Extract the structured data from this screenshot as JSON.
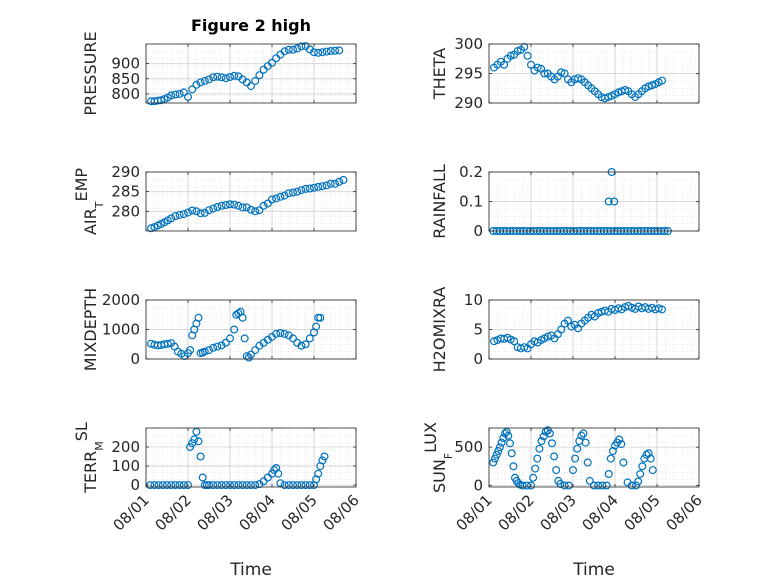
{
  "chart_data": {
    "type": "scatter",
    "title": "Figure 2 high",
    "xlabel": "Time",
    "xticks": [
      "08/01",
      "08/02",
      "08/03",
      "08/04",
      "08/05",
      "08/06"
    ],
    "xlim": [
      0,
      5
    ],
    "marker_color": "#0072BD",
    "grid": true,
    "panels": [
      {
        "ylabel": "PRESSURE",
        "ylabel_subscript": "",
        "ylim": [
          770,
          965
        ],
        "yticks": [
          800,
          850,
          900
        ],
        "ytick_labels": [
          "800",
          "850",
          "900"
        ],
        "title": "Figure 2 high",
        "x": [
          0.12,
          0.2,
          0.28,
          0.36,
          0.44,
          0.52,
          0.6,
          0.7,
          0.8,
          0.9,
          1.0,
          1.1,
          1.2,
          1.3,
          1.4,
          1.5,
          1.6,
          1.7,
          1.8,
          1.9,
          2.0,
          2.1,
          2.2,
          2.3,
          2.4,
          2.5,
          2.6,
          2.7,
          2.8,
          2.9,
          3.0,
          3.1,
          3.2,
          3.3,
          3.4,
          3.5,
          3.6,
          3.7,
          3.8,
          3.9,
          4.0,
          4.1,
          4.2,
          4.3,
          4.4,
          4.5,
          4.6
        ],
        "y": [
          776,
          776,
          778,
          779,
          783,
          788,
          795,
          798,
          800,
          805,
          790,
          815,
          830,
          838,
          843,
          848,
          855,
          857,
          855,
          852,
          856,
          860,
          858,
          848,
          838,
          826,
          843,
          862,
          880,
          892,
          903,
          918,
          930,
          941,
          946,
          946,
          950,
          957,
          958,
          947,
          938,
          936,
          938,
          940,
          942,
          943,
          944
        ]
      },
      {
        "ylabel": "AIR",
        "ylabel_subscript": "T",
        "ylabel_suffix": "EMP",
        "ylim": [
          275,
          290
        ],
        "yticks": [
          280,
          285,
          290
        ],
        "ytick_labels": [
          "280",
          "285",
          "290"
        ],
        "x": [
          0.12,
          0.2,
          0.28,
          0.36,
          0.44,
          0.52,
          0.6,
          0.7,
          0.8,
          0.9,
          1.0,
          1.1,
          1.2,
          1.3,
          1.4,
          1.5,
          1.6,
          1.7,
          1.8,
          1.9,
          2.0,
          2.1,
          2.2,
          2.3,
          2.4,
          2.5,
          2.6,
          2.7,
          2.8,
          2.9,
          3.0,
          3.1,
          3.2,
          3.3,
          3.4,
          3.5,
          3.6,
          3.7,
          3.8,
          3.9,
          4.0,
          4.1,
          4.2,
          4.3,
          4.4,
          4.5,
          4.6,
          4.7
        ],
        "y": [
          275.7,
          276.0,
          276.4,
          276.8,
          277.2,
          277.7,
          278.2,
          278.8,
          279.1,
          279.3,
          279.7,
          280.2,
          280.0,
          279.5,
          279.6,
          280.3,
          280.7,
          281.1,
          281.4,
          281.6,
          281.8,
          281.7,
          281.4,
          281.0,
          281.0,
          280.4,
          280.0,
          280.3,
          281.4,
          282.0,
          283.0,
          283.3,
          283.7,
          284.0,
          284.6,
          284.8,
          285.0,
          285.4,
          285.7,
          285.8,
          286.0,
          286.2,
          286.4,
          286.6,
          287.0,
          287.0,
          287.5,
          288.0
        ]
      },
      {
        "ylabel": "MIXDEPTH",
        "ylabel_subscript": "",
        "ylim": [
          0,
          2000
        ],
        "yticks": [
          0,
          1000,
          2000
        ],
        "ytick_labels": [
          "0",
          "1000",
          "2000"
        ],
        "x": [
          0.12,
          0.2,
          0.28,
          0.36,
          0.44,
          0.52,
          0.6,
          0.68,
          0.76,
          0.84,
          0.92,
          1.0,
          1.05,
          1.1,
          1.15,
          1.2,
          1.25,
          1.3,
          1.35,
          1.4,
          1.5,
          1.6,
          1.7,
          1.8,
          1.9,
          2.0,
          2.1,
          2.15,
          2.2,
          2.25,
          2.3,
          2.35,
          2.4,
          2.45,
          2.5,
          2.6,
          2.7,
          2.8,
          2.9,
          3.0,
          3.1,
          3.2,
          3.3,
          3.4,
          3.5,
          3.6,
          3.7,
          3.8,
          3.9,
          4.0,
          4.05,
          4.1,
          4.15
        ],
        "y": [
          520,
          480,
          460,
          470,
          500,
          520,
          540,
          420,
          250,
          180,
          100,
          200,
          300,
          800,
          1000,
          1200,
          1400,
          200,
          220,
          250,
          300,
          380,
          420,
          460,
          550,
          700,
          1000,
          1500,
          1550,
          1600,
          1400,
          700,
          100,
          50,
          150,
          300,
          450,
          550,
          650,
          750,
          850,
          880,
          850,
          800,
          700,
          550,
          450,
          500,
          700,
          900,
          1100,
          1400,
          1400
        ]
      },
      {
        "ylabel": "TERR",
        "ylabel_subscript": "M",
        "ylabel_suffix": "SL",
        "ylim": [
          -10,
          300
        ],
        "yticks": [
          0,
          100,
          200
        ],
        "ytick_labels": [
          "0",
          "100",
          "200"
        ],
        "x": [
          0.1,
          0.2,
          0.3,
          0.4,
          0.5,
          0.6,
          0.7,
          0.8,
          0.9,
          1.0,
          1.05,
          1.1,
          1.15,
          1.2,
          1.25,
          1.3,
          1.35,
          1.4,
          1.45,
          1.5,
          1.6,
          1.7,
          1.8,
          1.9,
          2.0,
          2.1,
          2.2,
          2.3,
          2.4,
          2.5,
          2.6,
          2.7,
          2.8,
          2.9,
          3.0,
          3.05,
          3.1,
          3.15,
          3.2,
          3.3,
          3.4,
          3.5,
          3.6,
          3.7,
          3.8,
          3.9,
          4.0,
          4.05,
          4.1,
          4.15,
          4.2,
          4.25
        ],
        "y": [
          0,
          0,
          0,
          0,
          0,
          0,
          0,
          0,
          0,
          0,
          200,
          220,
          240,
          280,
          230,
          150,
          40,
          0,
          0,
          0,
          0,
          0,
          0,
          0,
          0,
          0,
          0,
          0,
          0,
          0,
          0,
          5,
          20,
          40,
          60,
          80,
          90,
          60,
          10,
          0,
          0,
          0,
          0,
          0,
          0,
          0,
          0,
          30,
          60,
          100,
          130,
          150
        ]
      },
      {
        "ylabel": "THETA",
        "ylabel_subscript": "",
        "ylim": [
          290,
          300
        ],
        "yticks": [
          290,
          295,
          300
        ],
        "ytick_labels": [
          "290",
          "295",
          "300"
        ],
        "x": [
          0.12,
          0.2,
          0.28,
          0.36,
          0.44,
          0.52,
          0.6,
          0.68,
          0.76,
          0.84,
          0.92,
          1.0,
          1.08,
          1.16,
          1.24,
          1.32,
          1.4,
          1.48,
          1.56,
          1.64,
          1.72,
          1.8,
          1.88,
          1.96,
          2.04,
          2.12,
          2.2,
          2.28,
          2.36,
          2.44,
          2.52,
          2.6,
          2.68,
          2.76,
          2.84,
          2.92,
          3.0,
          3.08,
          3.16,
          3.24,
          3.32,
          3.4,
          3.48,
          3.56,
          3.64,
          3.72,
          3.8,
          3.88,
          3.96,
          4.04,
          4.12
        ],
        "y": [
          296.0,
          296.5,
          297.0,
          296.5,
          297.5,
          298.0,
          298.2,
          298.8,
          299.0,
          299.5,
          298.0,
          296.5,
          295.5,
          296.0,
          295.8,
          295.0,
          295.0,
          294.5,
          294.0,
          294.5,
          295.2,
          295.0,
          294.0,
          293.5,
          294.0,
          294.2,
          294.0,
          293.5,
          293.0,
          292.5,
          292.0,
          291.5,
          291.0,
          290.8,
          291.0,
          291.2,
          291.5,
          291.8,
          292.0,
          292.2,
          292.0,
          291.5,
          291.0,
          291.5,
          292.0,
          292.5,
          292.8,
          293.0,
          293.2,
          293.5,
          293.8
        ]
      },
      {
        "ylabel": "RAINFALL",
        "ylabel_subscript": "",
        "ylim": [
          0,
          0.2
        ],
        "yticks": [
          0,
          0.1,
          0.2
        ],
        "ytick_labels": [
          "0",
          "0.1",
          "0.2"
        ],
        "x": [
          0.1,
          0.18,
          0.26,
          0.34,
          0.42,
          0.5,
          0.58,
          0.66,
          0.74,
          0.82,
          0.9,
          0.98,
          1.06,
          1.14,
          1.22,
          1.3,
          1.38,
          1.46,
          1.54,
          1.62,
          1.7,
          1.78,
          1.86,
          1.94,
          2.02,
          2.1,
          2.18,
          2.26,
          2.34,
          2.42,
          2.5,
          2.58,
          2.66,
          2.74,
          2.82,
          2.9,
          2.98,
          3.06,
          3.14,
          3.22,
          3.3,
          3.38,
          3.46,
          3.54,
          3.62,
          3.7,
          3.78,
          3.86,
          3.94,
          4.02,
          4.1,
          4.18,
          4.26,
          2.85,
          2.92,
          2.98
        ],
        "y": [
          0,
          0,
          0,
          0,
          0,
          0,
          0,
          0,
          0,
          0,
          0,
          0,
          0,
          0,
          0,
          0,
          0,
          0,
          0,
          0,
          0,
          0,
          0,
          0,
          0,
          0,
          0,
          0,
          0,
          0,
          0,
          0,
          0,
          0,
          0,
          0,
          0,
          0,
          0,
          0,
          0,
          0,
          0,
          0,
          0,
          0,
          0,
          0,
          0,
          0,
          0,
          0,
          0,
          0.1,
          0.2,
          0.1
        ]
      },
      {
        "ylabel": "H2OMIXRA",
        "ylabel_subscript": "",
        "ylim": [
          0,
          10
        ],
        "yticks": [
          0,
          5,
          10
        ],
        "ytick_labels": [
          "0",
          "5",
          "10"
        ],
        "x": [
          0.12,
          0.2,
          0.28,
          0.36,
          0.44,
          0.52,
          0.6,
          0.68,
          0.76,
          0.84,
          0.92,
          1.0,
          1.08,
          1.16,
          1.24,
          1.32,
          1.4,
          1.48,
          1.56,
          1.64,
          1.72,
          1.8,
          1.88,
          1.96,
          2.04,
          2.12,
          2.2,
          2.28,
          2.36,
          2.44,
          2.52,
          2.6,
          2.68,
          2.76,
          2.84,
          2.92,
          3.0,
          3.08,
          3.16,
          3.24,
          3.32,
          3.4,
          3.48,
          3.56,
          3.64,
          3.72,
          3.8,
          3.88,
          3.96,
          4.04,
          4.12
        ],
        "y": [
          3.0,
          3.2,
          3.5,
          3.4,
          3.6,
          3.3,
          3.0,
          2.0,
          1.8,
          2.0,
          1.8,
          2.5,
          3.0,
          2.8,
          3.2,
          3.5,
          3.8,
          4.0,
          3.5,
          4.2,
          5.0,
          6.0,
          6.5,
          5.5,
          5.8,
          5.2,
          6.0,
          6.5,
          7.0,
          7.5,
          7.2,
          7.8,
          8.0,
          8.2,
          8.0,
          8.5,
          8.3,
          8.6,
          8.4,
          8.8,
          9.0,
          8.7,
          8.5,
          8.9,
          8.6,
          8.8,
          8.5,
          8.7,
          8.4,
          8.6,
          8.4
        ]
      },
      {
        "ylabel": "SUN",
        "ylabel_subscript": "F",
        "ylabel_suffix": "LUX",
        "ylim": [
          -20,
          750
        ],
        "yticks": [
          0,
          500
        ],
        "ytick_labels": [
          "0",
          "500"
        ],
        "x": [
          0.1,
          0.14,
          0.18,
          0.22,
          0.26,
          0.3,
          0.34,
          0.38,
          0.42,
          0.46,
          0.5,
          0.54,
          0.58,
          0.62,
          0.66,
          0.7,
          0.74,
          0.8,
          0.9,
          1.0,
          1.05,
          1.1,
          1.15,
          1.2,
          1.25,
          1.3,
          1.35,
          1.4,
          1.45,
          1.5,
          1.55,
          1.6,
          1.65,
          1.7,
          1.8,
          1.9,
          2.0,
          2.05,
          2.1,
          2.15,
          2.2,
          2.25,
          2.3,
          2.35,
          2.4,
          2.5,
          2.6,
          2.7,
          2.8,
          2.85,
          2.9,
          2.95,
          3.0,
          3.05,
          3.1,
          3.15,
          3.2,
          3.3,
          3.4,
          3.5,
          3.55,
          3.6,
          3.65,
          3.7,
          3.75,
          3.8,
          3.85,
          3.9
        ],
        "y": [
          300,
          350,
          400,
          450,
          500,
          560,
          620,
          680,
          700,
          650,
          550,
          420,
          250,
          100,
          60,
          30,
          10,
          0,
          0,
          0,
          100,
          220,
          350,
          480,
          580,
          640,
          700,
          720,
          680,
          550,
          380,
          200,
          60,
          20,
          0,
          0,
          200,
          350,
          480,
          580,
          650,
          680,
          560,
          300,
          60,
          0,
          0,
          0,
          0,
          150,
          350,
          450,
          520,
          560,
          600,
          540,
          300,
          40,
          0,
          0,
          50,
          150,
          250,
          350,
          400,
          420,
          350,
          200
        ]
      }
    ]
  }
}
